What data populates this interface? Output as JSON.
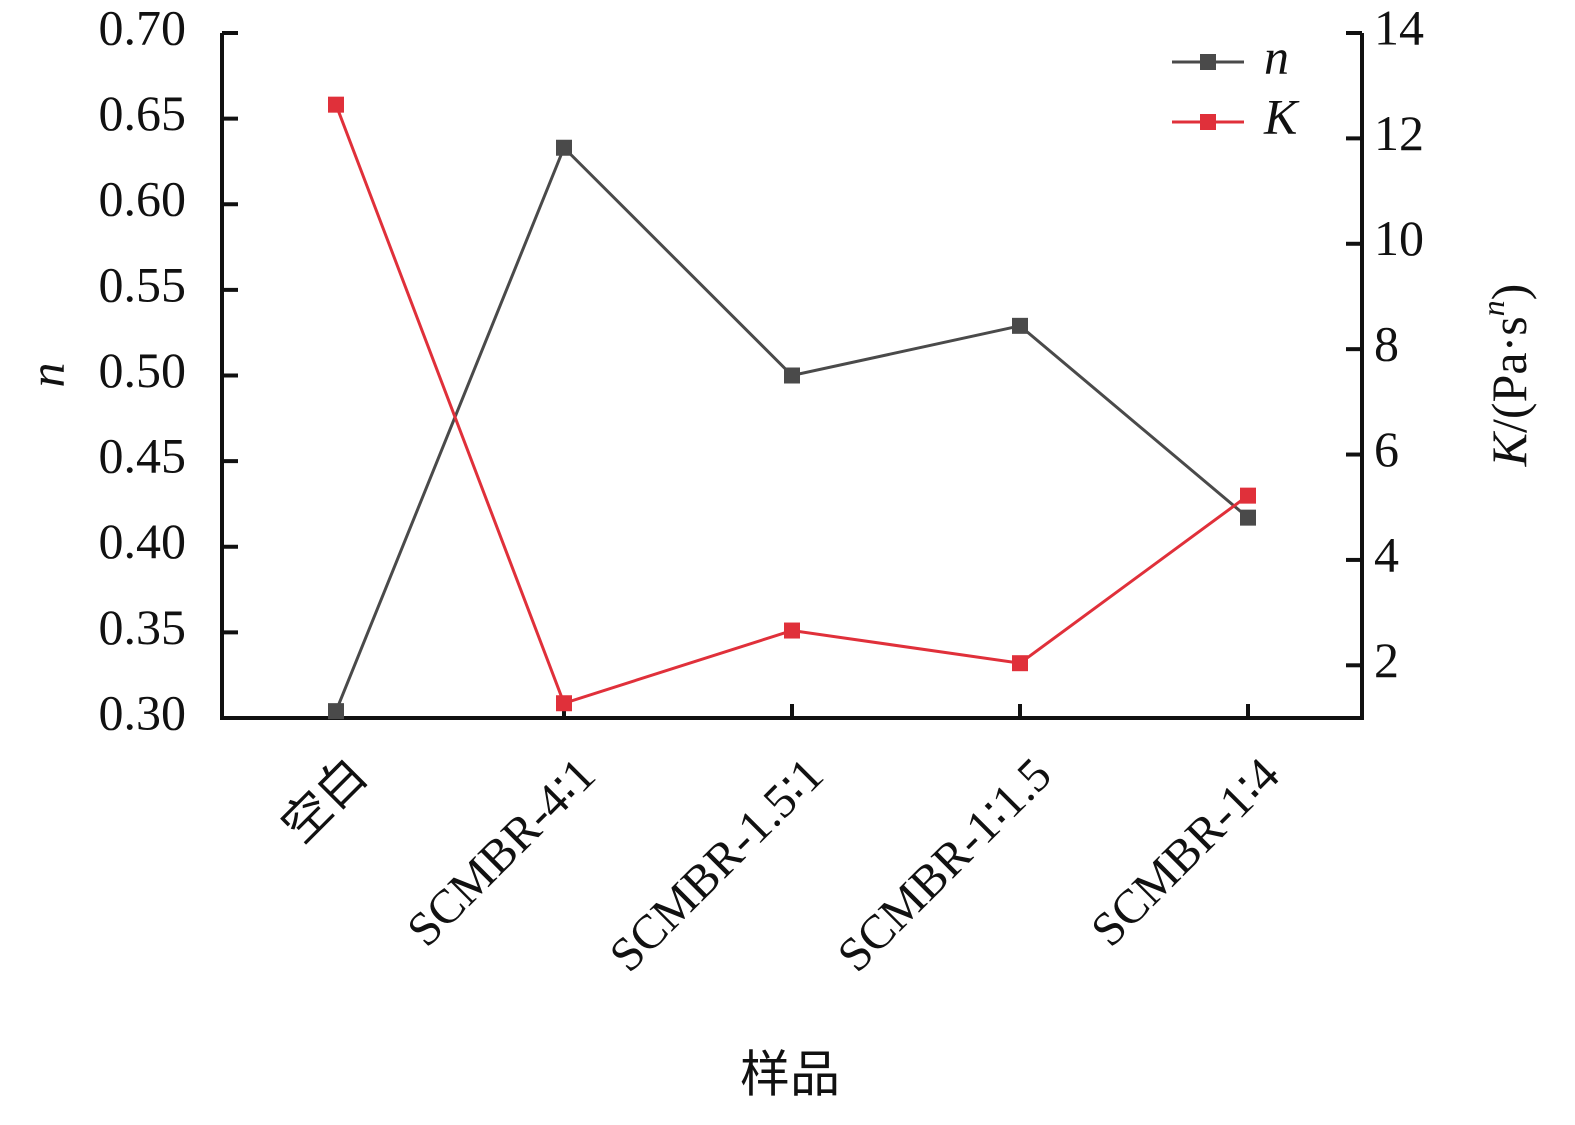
{
  "chart_data": {
    "type": "line",
    "categories": [
      "空白",
      "SCMBR-4∶1",
      "SCMBR-1.5∶1",
      "SCMBR-1∶1.5",
      "SCMBR-1∶4"
    ],
    "series": [
      {
        "name": "n",
        "color": "#4a4a4a",
        "values": [
          0.304,
          0.633,
          0.5,
          0.529,
          0.417
        ]
      },
      {
        "name": "K",
        "color": "#e0303a",
        "axis": "y2",
        "values": [
          12.64,
          1.28,
          2.66,
          2.04,
          5.22
        ]
      }
    ],
    "xlabel": "样品",
    "ylabel": "n",
    "y2label": [
      "K",
      "/(Pa·s",
      "n",
      ")"
    ],
    "ylim": [
      0.3,
      0.7
    ],
    "yticks": [
      {
        "value": 0.3,
        "label": "0.30"
      },
      {
        "value": 0.35,
        "label": "0.35"
      },
      {
        "value": 0.4,
        "label": "0.40"
      },
      {
        "value": 0.45,
        "label": "0.45"
      },
      {
        "value": 0.5,
        "label": "0.50"
      },
      {
        "value": 0.55,
        "label": "0.55"
      },
      {
        "value": 0.6,
        "label": "0.60"
      },
      {
        "value": 0.65,
        "label": "0.65"
      },
      {
        "value": 0.7,
        "label": "0.70"
      }
    ],
    "y2lim": [
      1,
      14
    ],
    "y2ticks": [
      2,
      4,
      6,
      8,
      10,
      12,
      14
    ],
    "legend": "upper right",
    "grid": false
  }
}
